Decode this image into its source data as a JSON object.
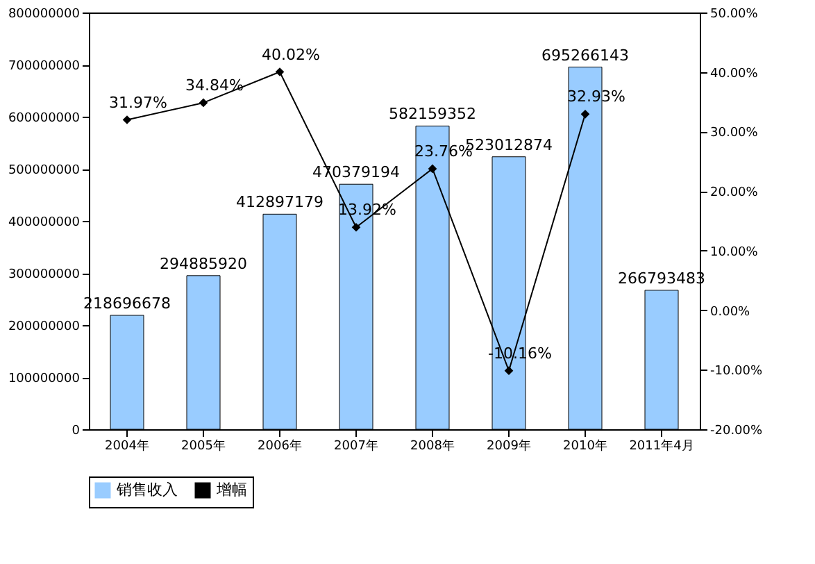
{
  "chart_data": {
    "type": "bar",
    "categories": [
      "2004年",
      "2005年",
      "2006年",
      "2007年",
      "2008年",
      "2009年",
      "2010年",
      "2011年4月"
    ],
    "series": [
      {
        "name": "销售收入",
        "color": "#99ccff",
        "values": [
          218696678,
          294885920,
          412897179,
          470379194,
          582159352,
          523012874,
          695266143,
          266793483
        ],
        "value_labels": [
          "218696678",
          "294885920",
          "412897179",
          "470379194",
          "582159352",
          "523012874",
          "695266143",
          "266793483"
        ]
      },
      {
        "name": "增幅",
        "type": "line",
        "axis": "y2",
        "color": "#000000",
        "marker": "diamond",
        "line_style": "solid",
        "values": [
          31.97,
          34.84,
          40.02,
          13.92,
          23.76,
          -10.16,
          32.93,
          null
        ],
        "value_labels": [
          "31.97%",
          "34.84%",
          "40.02%",
          "13.92%",
          "23.76%",
          "-10.16%",
          "32.93%",
          null
        ]
      }
    ],
    "ylim": [
      0,
      800000000
    ],
    "yticks": [
      0,
      100000000,
      200000000,
      300000000,
      400000000,
      500000000,
      600000000,
      700000000,
      800000000
    ],
    "y2lim": [
      -20,
      50
    ],
    "y2ticks": [
      {
        "value": -20,
        "label": "-20.00%"
      },
      {
        "value": -10,
        "label": "-10.00%"
      },
      {
        "value": 0,
        "label": "0.00%"
      },
      {
        "value": 10,
        "label": "10.00%"
      },
      {
        "value": 20,
        "label": "20.00%"
      },
      {
        "value": 30,
        "label": "30.00%"
      },
      {
        "value": 40,
        "label": "40.00%"
      },
      {
        "value": 50,
        "label": "50.00%"
      }
    ],
    "legend": "bottom",
    "grid": false
  }
}
